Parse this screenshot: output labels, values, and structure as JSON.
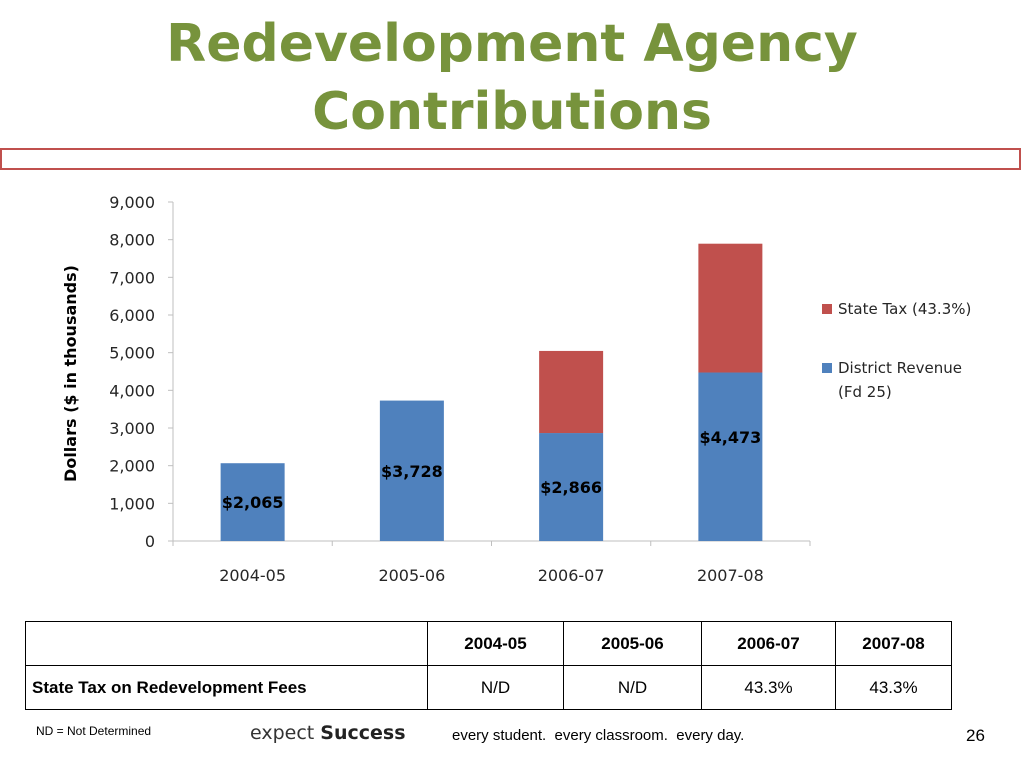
{
  "slide": {
    "title_line1": "Redevelopment Agency",
    "title_line2": "Contributions",
    "footnote": "ND = Not Determined",
    "brand_part1": "expect ",
    "brand_part2": "Success",
    "tagline": "every student.  every classroom.  every day.",
    "page_number": "26"
  },
  "chart_data": {
    "type": "bar",
    "stacked": true,
    "categories": [
      "2004-05",
      "2005-06",
      "2006-07",
      "2007-08"
    ],
    "series": [
      {
        "name": "District Revenue (Fd 25)",
        "legend_line1": "District Revenue",
        "legend_line2": "(Fd 25)",
        "color": "#4f81bd",
        "values": [
          2065,
          3728,
          2866,
          4473
        ],
        "labels": [
          "$2,065",
          "$3,728",
          "$2,866",
          "$4,473"
        ]
      },
      {
        "name": "State Tax (43.3%)",
        "legend_line1": "State Tax (43.3%)",
        "legend_line2": "",
        "color": "#c0504d",
        "values": [
          0,
          0,
          2180,
          3420
        ],
        "labels": [
          "",
          "",
          "",
          ""
        ]
      }
    ],
    "ylabel": "Dollars ($ in thousands)",
    "ylim": [
      0,
      9000
    ],
    "yticks": [
      0,
      1000,
      2000,
      3000,
      4000,
      5000,
      6000,
      7000,
      8000,
      9000
    ],
    "ytick_labels": [
      "0",
      "1,000",
      "2,000",
      "3,000",
      "4,000",
      "5,000",
      "6,000",
      "7,000",
      "8,000",
      "9,000"
    ],
    "grid": false,
    "legend_position": "right"
  },
  "table": {
    "headers": [
      "",
      "2004-05",
      "2005-06",
      "2006-07",
      "2007-08"
    ],
    "rows": [
      {
        "label": "State Tax on Redevelopment Fees",
        "cells": [
          "N/D",
          "N/D",
          "43.3%",
          "43.3%"
        ]
      }
    ]
  }
}
